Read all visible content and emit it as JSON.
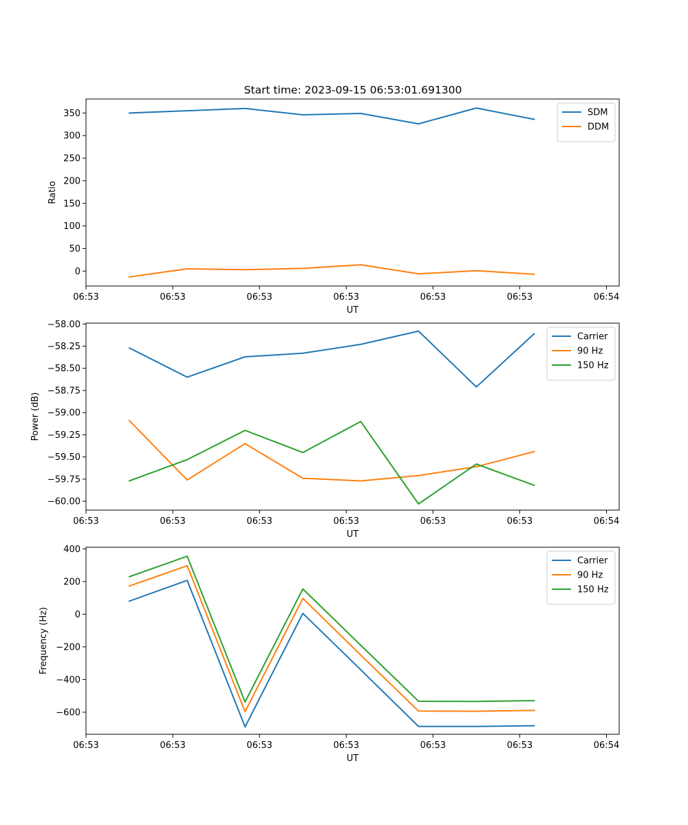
{
  "title": "Start time: 2023-09-15 06:53:01.691300",
  "chart_data": [
    {
      "type": "line",
      "ylabel": "Ratio",
      "xlabel": "UT",
      "x": [
        0,
        1,
        2,
        3,
        4,
        5,
        6,
        7
      ],
      "xlim": [
        -0.75,
        8.47
      ],
      "xticks": [
        -0.75,
        0.75,
        2.25,
        3.75,
        5.25,
        6.75,
        8.25
      ],
      "xtick_labels": [
        "06:53",
        "06:53",
        "06:53",
        "06:53",
        "06:53",
        "06:53",
        "06:54"
      ],
      "ylim": [
        -33,
        381
      ],
      "yticks": [
        0,
        50,
        100,
        150,
        200,
        250,
        300,
        350
      ],
      "ytick_labels": [
        "0",
        "50",
        "100",
        "150",
        "200",
        "250",
        "300",
        "350"
      ],
      "legend_position": "top-right",
      "series": [
        {
          "name": "SDM",
          "color": "#1f77b4",
          "values": [
            350,
            355,
            360,
            346,
            349,
            326,
            361,
            336
          ]
        },
        {
          "name": "DDM",
          "color": "#ff7f0e",
          "values": [
            -13,
            5,
            3,
            6,
            14,
            -6,
            1,
            -7
          ]
        }
      ]
    },
    {
      "type": "line",
      "ylabel": "Power (dB)",
      "xlabel": "UT",
      "x": [
        0,
        1,
        2,
        3,
        4,
        5,
        6,
        7
      ],
      "xlim": [
        -0.75,
        8.47
      ],
      "xticks": [
        -0.75,
        0.75,
        2.25,
        3.75,
        5.25,
        6.75,
        8.25
      ],
      "xtick_labels": [
        "06:53",
        "06:53",
        "06:53",
        "06:53",
        "06:53",
        "06:53",
        "06:54"
      ],
      "ylim": [
        -60.1,
        -57.99
      ],
      "yticks": [
        -58.0,
        -58.25,
        -58.5,
        -58.75,
        -59.0,
        -59.25,
        -59.5,
        -59.75,
        -60.0
      ],
      "ytick_labels": [
        "−58.00",
        "−58.25",
        "−58.50",
        "−58.75",
        "−59.00",
        "−59.25",
        "−59.50",
        "−59.75",
        "−60.00"
      ],
      "legend_position": "top-right",
      "series": [
        {
          "name": "Carrier",
          "color": "#1f77b4",
          "values": [
            -58.27,
            -58.6,
            -58.37,
            -58.33,
            -58.23,
            -58.08,
            -58.71,
            -58.11
          ]
        },
        {
          "name": "90 Hz",
          "color": "#ff7f0e",
          "values": [
            -59.09,
            -59.76,
            -59.35,
            -59.74,
            -59.77,
            -59.71,
            -59.61,
            -59.44
          ]
        },
        {
          "name": "150 Hz",
          "color": "#2ca02c",
          "values": [
            -59.77,
            -59.53,
            -59.2,
            -59.45,
            -59.1,
            -60.03,
            -59.58,
            -59.82
          ]
        }
      ]
    },
    {
      "type": "line",
      "ylabel": "Frequency (Hz)",
      "xlabel": "UT",
      "x": [
        0,
        1,
        2,
        3,
        4,
        5,
        6,
        7
      ],
      "xlim": [
        -0.75,
        8.47
      ],
      "xticks": [
        -0.75,
        0.75,
        2.25,
        3.75,
        5.25,
        6.75,
        8.25
      ],
      "xtick_labels": [
        "06:53",
        "06:53",
        "06:53",
        "06:53",
        "06:53",
        "06:53",
        "06:54"
      ],
      "ylim": [
        -735,
        410
      ],
      "yticks": [
        400,
        200,
        0,
        -200,
        -400,
        -600
      ],
      "ytick_labels": [
        "400",
        "200",
        "0",
        "−200",
        "−400",
        "−600"
      ],
      "legend_position": "top-right",
      "series": [
        {
          "name": "Carrier",
          "color": "#1f77b4",
          "values": [
            80,
            207,
            -690,
            5,
            -340,
            -687,
            -687,
            -683
          ]
        },
        {
          "name": "90 Hz",
          "color": "#ff7f0e",
          "values": [
            172,
            297,
            -597,
            97,
            -250,
            -593,
            -594,
            -589
          ]
        },
        {
          "name": "150 Hz",
          "color": "#2ca02c",
          "values": [
            230,
            355,
            -537,
            155,
            -190,
            -533,
            -534,
            -529
          ]
        }
      ]
    }
  ]
}
